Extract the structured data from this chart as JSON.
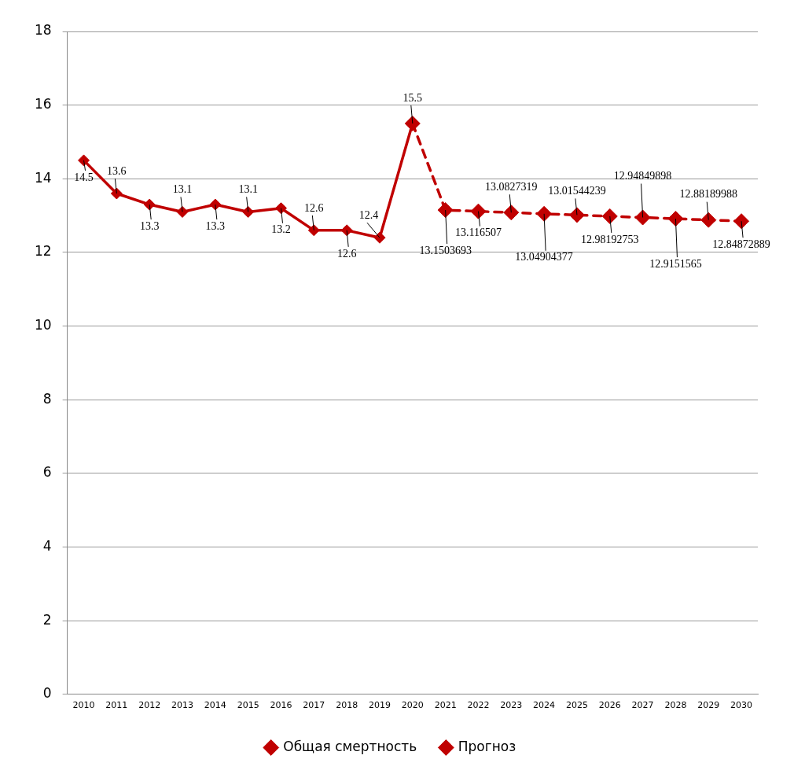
{
  "chart_data": {
    "type": "line",
    "categories": [
      "2010",
      "2011",
      "2012",
      "2013",
      "2014",
      "2015",
      "2016",
      "2017",
      "2018",
      "2019",
      "2020",
      "2021",
      "2022",
      "2023",
      "2024",
      "2025",
      "2026",
      "2027",
      "2028",
      "2029",
      "2030"
    ],
    "series": [
      {
        "name": "Общая смертность",
        "color": "#c00000",
        "line_style": "solid",
        "values": [
          14.5,
          13.6,
          13.3,
          13.1,
          13.3,
          13.1,
          13.2,
          12.6,
          12.6,
          12.4,
          15.5,
          null,
          null,
          null,
          null,
          null,
          null,
          null,
          null,
          null,
          null
        ],
        "value_labels": [
          "14.5",
          "13.6",
          "13.3",
          "13.1",
          "13.3",
          "13.1",
          "13.2",
          "12.6",
          "12.6",
          "12.4",
          "15.5",
          null,
          null,
          null,
          null,
          null,
          null,
          null,
          null,
          null,
          null
        ]
      },
      {
        "name": "Прогноз",
        "color": "#c00000",
        "line_style": "dashed",
        "values": [
          null,
          null,
          null,
          null,
          null,
          null,
          null,
          null,
          null,
          null,
          15.5,
          13.1503693,
          13.116507,
          13.0827319,
          13.04904377,
          13.01544239,
          12.98192753,
          12.94849898,
          12.9151565,
          12.88189988,
          12.84872889
        ],
        "value_labels": [
          null,
          null,
          null,
          null,
          null,
          null,
          null,
          null,
          null,
          null,
          null,
          "13.1503693",
          "13.116507",
          "13.0827319",
          "13.04904377",
          "13.01544239",
          "12.98192753",
          "12.94849898",
          "12.9151565",
          "12.88189988",
          "12.84872889"
        ]
      }
    ],
    "ylim": [
      0,
      18
    ],
    "yticks": [
      0,
      2,
      4,
      6,
      8,
      10,
      12,
      14,
      16,
      18
    ],
    "grid": "y",
    "legend": "bottom",
    "marker": "diamond"
  }
}
